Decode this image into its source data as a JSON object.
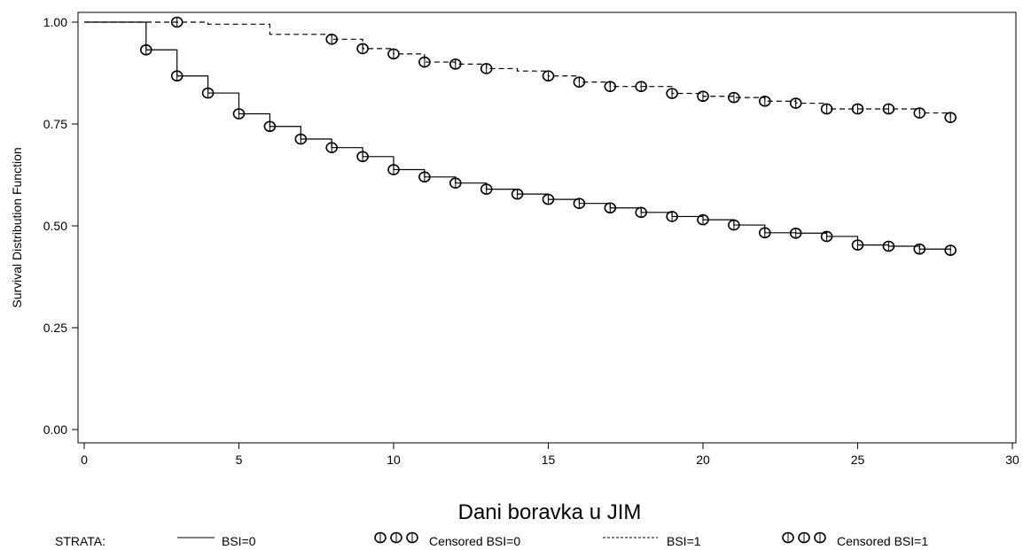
{
  "chart_data": {
    "type": "line",
    "title": "",
    "xlabel": "Dani boravka u JIM",
    "ylabel": "Survival Distribution Function",
    "xlim": [
      0,
      30
    ],
    "ylim": [
      0,
      1
    ],
    "x_ticks": [
      "0",
      "5",
      "10",
      "15",
      "20",
      "25",
      "30"
    ],
    "y_ticks": [
      "0.00",
      "0.25",
      "0.50",
      "0.75",
      "1.00"
    ],
    "grid": false,
    "legend": {
      "position": "bottom",
      "title": "STRATA:",
      "entries": [
        "BSI=0",
        "Censored BSI=0",
        "BSI=1",
        "Censored BSI=1"
      ]
    },
    "series": [
      {
        "name": "BSI=0",
        "style": "solid",
        "step_x": [
          0,
          2,
          3,
          4,
          5,
          6,
          7,
          8,
          9,
          10,
          11,
          12,
          13,
          14,
          15,
          16,
          17,
          18,
          19,
          20,
          21,
          22,
          23,
          24,
          25,
          26,
          27,
          28
        ],
        "step_y": [
          1.0,
          0.932,
          0.868,
          0.826,
          0.775,
          0.744,
          0.713,
          0.692,
          0.67,
          0.638,
          0.62,
          0.605,
          0.59,
          0.578,
          0.565,
          0.555,
          0.544,
          0.533,
          0.523,
          0.515,
          0.502,
          0.483,
          0.482,
          0.474,
          0.453,
          0.45,
          0.443,
          0.44
        ],
        "censored_x": [
          2,
          3,
          4,
          5,
          6,
          7,
          8,
          9,
          10,
          11,
          12,
          13,
          14,
          15,
          16,
          17,
          18,
          19,
          20,
          21,
          22,
          23,
          24,
          25,
          26,
          27,
          28
        ],
        "censored_y": [
          0.932,
          0.868,
          0.826,
          0.775,
          0.744,
          0.713,
          0.692,
          0.67,
          0.638,
          0.62,
          0.605,
          0.59,
          0.578,
          0.565,
          0.555,
          0.544,
          0.533,
          0.523,
          0.515,
          0.502,
          0.483,
          0.482,
          0.474,
          0.453,
          0.45,
          0.443,
          0.44
        ]
      },
      {
        "name": "BSI=1",
        "style": "dashed",
        "step_x": [
          0,
          3,
          4,
          6,
          8,
          9,
          10,
          11,
          12,
          13,
          14,
          15,
          16,
          17,
          18,
          19,
          20,
          21,
          22,
          23,
          24,
          25,
          26,
          27,
          28
        ],
        "step_y": [
          1.0,
          1.0,
          0.995,
          0.97,
          0.958,
          0.935,
          0.922,
          0.902,
          0.897,
          0.886,
          0.88,
          0.868,
          0.853,
          0.842,
          0.842,
          0.825,
          0.818,
          0.815,
          0.806,
          0.801,
          0.787,
          0.787,
          0.787,
          0.777,
          0.766
        ],
        "censored_x": [
          3,
          8,
          9,
          10,
          11,
          12,
          13,
          15,
          16,
          17,
          18,
          19,
          20,
          21,
          22,
          23,
          24,
          25,
          26,
          27,
          28
        ],
        "censored_y": [
          1.0,
          0.958,
          0.935,
          0.922,
          0.902,
          0.897,
          0.886,
          0.868,
          0.853,
          0.842,
          0.842,
          0.825,
          0.818,
          0.815,
          0.806,
          0.801,
          0.787,
          0.787,
          0.787,
          0.777,
          0.766
        ]
      }
    ]
  }
}
